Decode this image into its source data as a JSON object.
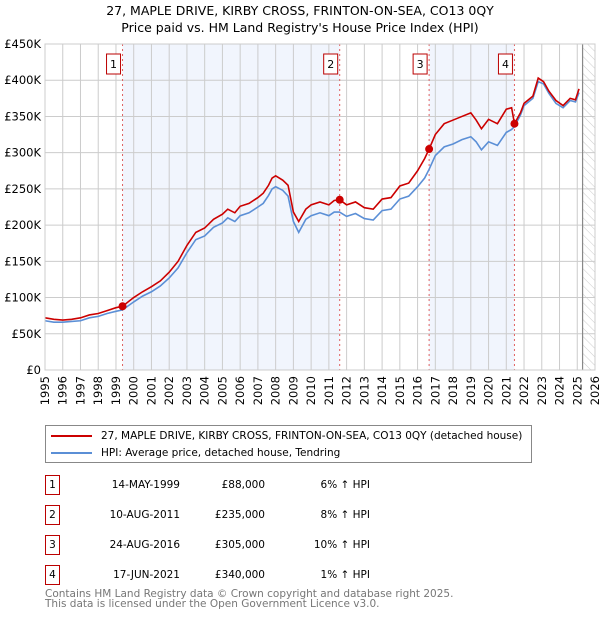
{
  "chart_data": {
    "type": "line",
    "title": "27, MAPLE DRIVE, KIRBY CROSS, FRINTON-ON-SEA, CO13 0QY",
    "subtitle": "Price paid vs. HM Land Registry's House Price Index (HPI)",
    "xlabel": "",
    "ylabel": "",
    "xlim": [
      1995,
      2026
    ],
    "ylim": [
      0,
      450000
    ],
    "x_ticks": [
      "1995",
      "1996",
      "1997",
      "1998",
      "1999",
      "2000",
      "2001",
      "2002",
      "2003",
      "2004",
      "2005",
      "2006",
      "2007",
      "2008",
      "2009",
      "2010",
      "2011",
      "2012",
      "2013",
      "2014",
      "2015",
      "2016",
      "2017",
      "2018",
      "2019",
      "2020",
      "2021",
      "2022",
      "2023",
      "2024",
      "2025",
      "2026"
    ],
    "y_ticks": [
      {
        "v": 0,
        "label": "£0"
      },
      {
        "v": 50000,
        "label": "£50K"
      },
      {
        "v": 100000,
        "label": "£100K"
      },
      {
        "v": 150000,
        "label": "£150K"
      },
      {
        "v": 200000,
        "label": "£200K"
      },
      {
        "v": 250000,
        "label": "£250K"
      },
      {
        "v": 300000,
        "label": "£300K"
      },
      {
        "v": 350000,
        "label": "£350K"
      },
      {
        "v": 400000,
        "label": "£400K"
      },
      {
        "v": 450000,
        "label": "£450K"
      }
    ],
    "grid": true,
    "series": [
      {
        "name": "27, MAPLE DRIVE, KIRBY CROSS, FRINTON-ON-SEA, CO13 0QY (detached house)",
        "color": "#cc0000",
        "x": [
          1995,
          1995.5,
          1996,
          1996.5,
          1997,
          1997.5,
          1998,
          1998.5,
          1999,
          1999.37,
          2000,
          2000.5,
          2001,
          2001.5,
          2002,
          2002.5,
          2003,
          2003.5,
          2004,
          2004.5,
          2005,
          2005.3,
          2005.7,
          2006,
          2006.5,
          2007,
          2007.3,
          2007.6,
          2007.8,
          2008,
          2008.4,
          2008.7,
          2009,
          2009.3,
          2009.7,
          2010,
          2010.5,
          2011,
          2011.3,
          2011.6,
          2012,
          2012.5,
          2013,
          2013.5,
          2014,
          2014.5,
          2015,
          2015.5,
          2016,
          2016.4,
          2016.65,
          2017,
          2017.5,
          2018,
          2018.5,
          2019,
          2019.3,
          2019.6,
          2020,
          2020.5,
          2021,
          2021.3,
          2021.46,
          2021.8,
          2022,
          2022.5,
          2022.8,
          2023.1,
          2023.4,
          2023.8,
          2024.2,
          2024.6,
          2024.9,
          2025.1
        ],
        "y": [
          72000,
          70000,
          69000,
          70000,
          72000,
          76000,
          78000,
          82000,
          86000,
          88000,
          100000,
          108000,
          115000,
          123000,
          135000,
          150000,
          172000,
          190000,
          196000,
          208000,
          215000,
          222000,
          217000,
          226000,
          230000,
          238000,
          244000,
          255000,
          265000,
          268000,
          262000,
          255000,
          218000,
          205000,
          222000,
          228000,
          232000,
          228000,
          234000,
          235000,
          228000,
          232000,
          224000,
          222000,
          236000,
          238000,
          254000,
          258000,
          275000,
          292000,
          305000,
          325000,
          340000,
          345000,
          350000,
          355000,
          345000,
          333000,
          346000,
          340000,
          360000,
          362000,
          340000,
          355000,
          368000,
          378000,
          403000,
          398000,
          385000,
          372000,
          365000,
          375000,
          373000,
          388000
        ]
      },
      {
        "name": "HPI: Average price, detached house, Tendring",
        "color": "#5b8fd6",
        "x": [
          1995,
          1995.5,
          1996,
          1996.5,
          1997,
          1997.5,
          1998,
          1998.5,
          1999,
          1999.37,
          2000,
          2000.5,
          2001,
          2001.5,
          2002,
          2002.5,
          2003,
          2003.5,
          2004,
          2004.5,
          2005,
          2005.3,
          2005.7,
          2006,
          2006.5,
          2007,
          2007.3,
          2007.6,
          2007.8,
          2008,
          2008.4,
          2008.7,
          2009,
          2009.3,
          2009.7,
          2010,
          2010.5,
          2011,
          2011.3,
          2011.6,
          2012,
          2012.5,
          2013,
          2013.5,
          2014,
          2014.5,
          2015,
          2015.5,
          2016,
          2016.4,
          2016.65,
          2017,
          2017.5,
          2018,
          2018.5,
          2019,
          2019.3,
          2019.6,
          2020,
          2020.5,
          2021,
          2021.3,
          2021.46,
          2021.8,
          2022,
          2022.5,
          2022.8,
          2023.1,
          2023.4,
          2023.8,
          2024.2,
          2024.6,
          2024.9,
          2025.1
        ],
        "y": [
          68000,
          66000,
          66000,
          67000,
          68000,
          72000,
          74000,
          78000,
          81000,
          83000,
          94000,
          102000,
          108000,
          116000,
          127000,
          141000,
          162000,
          180000,
          185000,
          197000,
          203000,
          210000,
          205000,
          213000,
          217000,
          225000,
          230000,
          241000,
          250000,
          253000,
          248000,
          240000,
          205000,
          190000,
          208000,
          213000,
          217000,
          213000,
          218000,
          218000,
          212000,
          216000,
          209000,
          207000,
          220000,
          222000,
          236000,
          240000,
          253000,
          265000,
          277000,
          296000,
          308000,
          312000,
          318000,
          322000,
          315000,
          304000,
          315000,
          310000,
          328000,
          332000,
          336000,
          352000,
          365000,
          375000,
          398000,
          395000,
          382000,
          368000,
          362000,
          372000,
          370000,
          383000
        ]
      }
    ],
    "sales": [
      {
        "id": "1",
        "x": 1999.37,
        "y": 88000
      },
      {
        "id": "2",
        "x": 2011.61,
        "y": 235000
      },
      {
        "id": "3",
        "x": 2016.65,
        "y": 305000
      },
      {
        "id": "4",
        "x": 2021.46,
        "y": 340000
      }
    ],
    "shaded_ranges": [
      [
        1999.37,
        2011.61
      ],
      [
        2016.65,
        2021.46
      ]
    ],
    "projection_from": 2025.3,
    "legend_position": "below"
  },
  "table": [
    {
      "id": "1",
      "date": "14-MAY-1999",
      "price": "£88,000",
      "hpi": "6% ↑ HPI"
    },
    {
      "id": "2",
      "date": "10-AUG-2011",
      "price": "£235,000",
      "hpi": "8% ↑ HPI"
    },
    {
      "id": "3",
      "date": "24-AUG-2016",
      "price": "£305,000",
      "hpi": "10% ↑ HPI"
    },
    {
      "id": "4",
      "date": "17-JUN-2021",
      "price": "£340,000",
      "hpi": "1% ↑ HPI"
    }
  ],
  "footer": {
    "line1": "Contains HM Land Registry data © Crown copyright and database right 2025.",
    "line2": "This data is licensed under the Open Government Licence v3.0."
  }
}
